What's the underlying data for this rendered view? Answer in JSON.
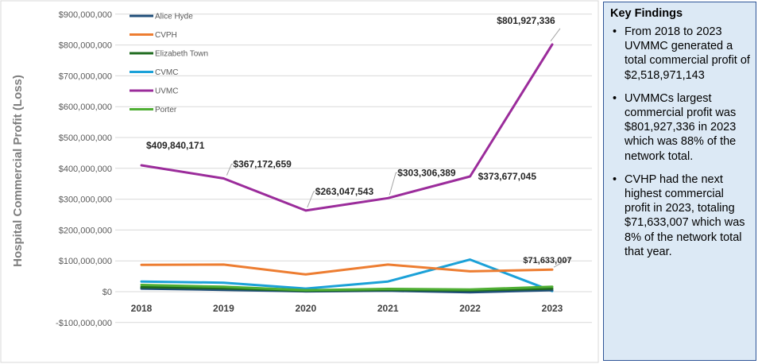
{
  "chart_data": {
    "type": "line",
    "ylabel": "Hospital Commercial Profit (Loss)",
    "x": [
      "2018",
      "2019",
      "2020",
      "2021",
      "2022",
      "2023"
    ],
    "ylim": [
      -100000000,
      900000000
    ],
    "yticks": [
      -100000000,
      0,
      100000000,
      200000000,
      300000000,
      400000000,
      500000000,
      600000000,
      700000000,
      800000000,
      900000000
    ],
    "ytick_labels": [
      "-$100,000,000",
      "$0",
      "$100,000,000",
      "$200,000,000",
      "$300,000,000",
      "$400,000,000",
      "$500,000,000",
      "$600,000,000",
      "$700,000,000",
      "$800,000,000",
      "$900,000,000"
    ],
    "grid": true,
    "legend_position": "top-left",
    "series": [
      {
        "name": "Alice Hyde",
        "color": "#1f4e79",
        "values": [
          10000000,
          6000000,
          1000000,
          3000000,
          -2000000,
          5000000
        ]
      },
      {
        "name": "CVPH",
        "color": "#ed7d31",
        "values": [
          87000000,
          88000000,
          56000000,
          88000000,
          66000000,
          71633007
        ]
      },
      {
        "name": "Elizabeth Town",
        "color": "#1e6b1e",
        "values": [
          15000000,
          11000000,
          3000000,
          6000000,
          4000000,
          10000000
        ]
      },
      {
        "name": "CVMC",
        "color": "#1ba1d8",
        "values": [
          33000000,
          29000000,
          10000000,
          33000000,
          104000000,
          2000000
        ]
      },
      {
        "name": "UVMC",
        "color": "#9b2c9b",
        "values": [
          409840171,
          367172659,
          263047543,
          303306389,
          373677045,
          801927336
        ]
      },
      {
        "name": "Porter",
        "color": "#4fae33",
        "values": [
          22000000,
          16000000,
          5000000,
          9000000,
          7000000,
          16000000
        ]
      }
    ],
    "annotations": [
      {
        "text": "$409,840,171",
        "series": "UVMC",
        "x": "2018",
        "value": 409840171
      },
      {
        "text": "$367,172,659",
        "series": "UVMC",
        "x": "2019",
        "value": 367172659
      },
      {
        "text": "$263,047,543",
        "series": "UVMC",
        "x": "2020",
        "value": 263047543
      },
      {
        "text": "$303,306,389",
        "series": "UVMC",
        "x": "2021",
        "value": 303306389
      },
      {
        "text": "$373,677,045",
        "series": "UVMC",
        "x": "2022",
        "value": 373677045
      },
      {
        "text": "$801,927,336",
        "series": "UVMC",
        "x": "2023",
        "value": 801927336
      },
      {
        "text": "$71,633,007",
        "series": "CVPH",
        "x": "2023",
        "value": 71633007
      }
    ]
  },
  "findings": {
    "title": "Key Findings",
    "items": [
      "From 2018 to 2023 UVMMC generated a total commercial profit of $2,518,971,143",
      "UVMMCs largest commercial profit was $801,927,336 in 2023 which was 88% of the network total.",
      "CVHP had the next highest commercial profit in 2023, totaling $71,633,007 which was 8% of the network total that year."
    ]
  }
}
